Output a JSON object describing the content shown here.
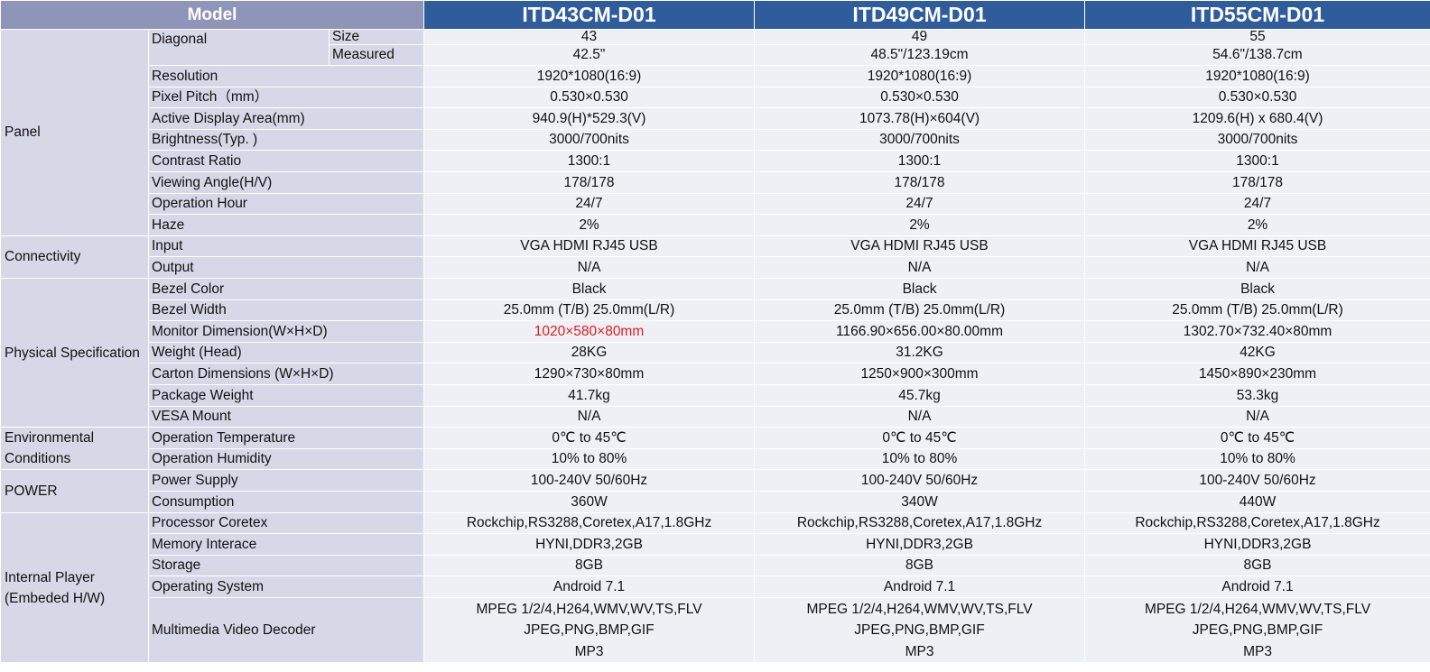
{
  "header": {
    "model_label": "Model",
    "products": [
      "ITD43CM-D01",
      "ITD49CM-D01",
      "ITD55CM-D01"
    ]
  },
  "categories": {
    "panel": "Panel",
    "connectivity": "Connectivity",
    "physical": "Physical Specification",
    "environmental": "Environmental Conditions",
    "power": "POWER",
    "player": "Internal Player (Embeded H/W)"
  },
  "rows": {
    "diagonal": {
      "label": "Diagonal",
      "sub_size": "Size",
      "sub_measured": "Measured",
      "size": [
        "43",
        "49",
        "55"
      ],
      "measured": [
        "42.5\"",
        "48.5\"/123.19cm",
        "54.6\"/138.7cm"
      ]
    },
    "resolution": {
      "label": "Resolution",
      "values": [
        "1920*1080(16:9)",
        "1920*1080(16:9)",
        "1920*1080(16:9)"
      ]
    },
    "pixel_pitch": {
      "label": "Pixel Pitch（mm）",
      "values": [
        "0.530×0.530",
        "0.530×0.530",
        "0.530×0.530"
      ]
    },
    "active_area": {
      "label": "Active Display Area(mm)",
      "values": [
        "940.9(H)*529.3(V)",
        "1073.78(H)×604(V)",
        "1209.6(H) x 680.4(V)"
      ]
    },
    "brightness": {
      "label": "Brightness(Typ. )",
      "values": [
        "3000/700nits",
        "3000/700nits",
        "3000/700nits"
      ]
    },
    "contrast": {
      "label": "Contrast Ratio",
      "values": [
        "1300:1",
        "1300:1",
        "1300:1"
      ]
    },
    "viewing": {
      "label": "Viewing Angle(H/V)",
      "values": [
        "178/178",
        "178/178",
        "178/178"
      ]
    },
    "op_hour": {
      "label": "Operation Hour",
      "values": [
        "24/7",
        "24/7",
        "24/7"
      ]
    },
    "haze": {
      "label": "Haze",
      "values": [
        "2%",
        "2%",
        "2%"
      ]
    },
    "input": {
      "label": "Input",
      "values": [
        "VGA HDMI RJ45 USB",
        "VGA HDMI RJ45 USB",
        "VGA HDMI RJ45 USB"
      ]
    },
    "output": {
      "label": "Output",
      "values": [
        "N/A",
        "N/A",
        "N/A"
      ]
    },
    "bezel_color": {
      "label": "Bezel Color",
      "values": [
        "Black",
        "Black",
        "Black"
      ]
    },
    "bezel_width": {
      "label": "Bezel Width",
      "values": [
        "25.0mm (T/B)  25.0mm(L/R)",
        "25.0mm (T/B)  25.0mm(L/R)",
        "25.0mm (T/B)  25.0mm(L/R)"
      ]
    },
    "monitor_dim": {
      "label": "Monitor Dimension(W×H×D)",
      "values": [
        "1020×580×80mm",
        "1166.90×656.00×80.00mm",
        "1302.70×732.40×80mm"
      ]
    },
    "weight": {
      "label": "Weight (Head)",
      "values": [
        "28KG",
        "31.2KG",
        "42KG"
      ]
    },
    "carton": {
      "label": "Carton Dimensions  (W×H×D)",
      "values": [
        "1290×730×80mm",
        "1250×900×300mm",
        "1450×890×230mm"
      ]
    },
    "pkg_weight": {
      "label": "Package Weight",
      "values": [
        "41.7kg",
        "45.7kg",
        "53.3kg"
      ]
    },
    "vesa": {
      "label": "VESA Mount",
      "values": [
        "N/A",
        "N/A",
        "N/A"
      ]
    },
    "op_temp": {
      "label": "Operation Temperature",
      "values": [
        "0℃ to 45℃",
        "0℃ to 45℃",
        "0℃ to 45℃"
      ]
    },
    "op_humidity": {
      "label": "Operation Humidity",
      "values": [
        "10% to 80%",
        "10% to 80%",
        "10% to 80%"
      ]
    },
    "power_supply": {
      "label": "Power Supply",
      "values": [
        "100-240V  50/60Hz",
        "100-240V  50/60Hz",
        "100-240V  50/60Hz"
      ]
    },
    "consumption": {
      "label": "Consumption",
      "values": [
        "360W",
        "340W",
        "440W"
      ]
    },
    "processor": {
      "label": "Processor Coretex",
      "values": [
        "Rockchip,RS3288,Coretex,A17,1.8GHz",
        "Rockchip,RS3288,Coretex,A17,1.8GHz",
        "Rockchip,RS3288,Coretex,A17,1.8GHz"
      ]
    },
    "memory": {
      "label": "Memory Interace",
      "values": [
        "HYNI,DDR3,2GB",
        "HYNI,DDR3,2GB",
        "HYNI,DDR3,2GB"
      ]
    },
    "storage": {
      "label": "Storage",
      "values": [
        "8GB",
        "8GB",
        "8GB"
      ]
    },
    "os": {
      "label": "Operating System",
      "values": [
        "Android 7.1",
        "Android 7.1",
        "Android 7.1"
      ]
    },
    "decoder": {
      "label": "Multimedia Video Decoder",
      "line1": "MPEG 1/2/4,H264,WMV,WV,TS,FLV",
      "line2": "JPEG,PNG,BMP,GIF",
      "line3": "MP3"
    }
  },
  "colors": {
    "header_model": "#8e95b8",
    "header_product": "#2f5c9b",
    "label_bg": "#d7d8e7",
    "value_bg": "#eff0f6",
    "highlight_text": "#e01b1b"
  }
}
